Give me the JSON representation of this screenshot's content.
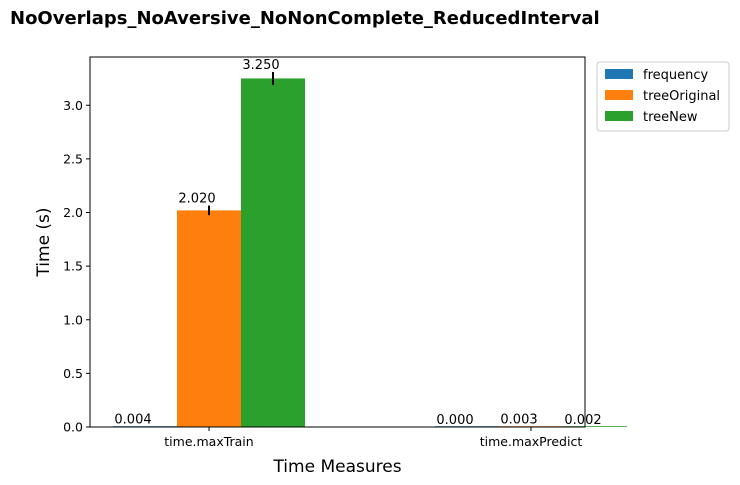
{
  "chart_data": {
    "type": "bar",
    "title": "NoOverlaps_NoAversive_NoNonComplete_ReducedInterval",
    "xlabel": "Time Measures",
    "ylabel": "Time (s)",
    "categories": [
      "time.maxTrain",
      "time.maxPredict"
    ],
    "ylim": [
      0,
      3.45
    ],
    "yticks": [
      0.0,
      0.5,
      1.0,
      1.5,
      2.0,
      2.5,
      3.0
    ],
    "ytick_labels": [
      "0.0",
      "0.5",
      "1.0",
      "1.5",
      "2.0",
      "2.5",
      "3.0"
    ],
    "legend_position": "outside top-right",
    "grid": false,
    "series": [
      {
        "name": "frequency",
        "color": "#1f77b4",
        "values": [
          0.004,
          0.0
        ],
        "labels": [
          "0.004",
          "0.000"
        ],
        "errors": [
          0,
          0
        ]
      },
      {
        "name": "treeOriginal",
        "color": "#ff7f0e",
        "values": [
          2.02,
          0.003
        ],
        "labels": [
          "2.020",
          "0.003"
        ],
        "errors": [
          0.045,
          0
        ]
      },
      {
        "name": "treeNew",
        "color": "#2ca02c",
        "values": [
          3.25,
          0.002
        ],
        "labels": [
          "3.250",
          "0.002"
        ],
        "errors": [
          0.06,
          0
        ]
      }
    ]
  }
}
